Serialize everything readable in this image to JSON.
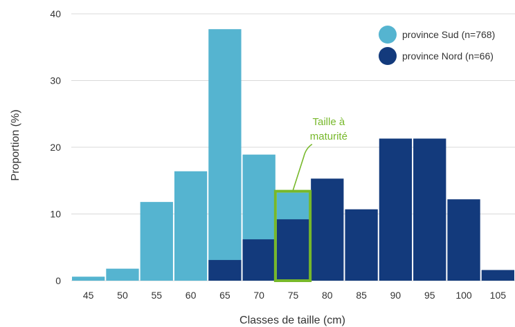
{
  "chart_data": {
    "type": "bar",
    "stacking": "overlaid",
    "xlabel": "Classes de taille (cm)",
    "ylabel": "Proportion (%)",
    "ylim": [
      0,
      40
    ],
    "yticks": [
      0,
      10,
      20,
      30,
      40
    ],
    "grid": true,
    "legend_position": "top-right",
    "categories": [
      "45",
      "50",
      "55",
      "60",
      "65",
      "70",
      "75",
      "80",
      "85",
      "90",
      "95",
      "100",
      "105"
    ],
    "series": [
      {
        "name": "province Sud (n=768)",
        "color": "#55b4d0",
        "values": [
          0.6,
          1.8,
          11.8,
          16.4,
          37.7,
          18.9,
          13.2,
          0,
          0,
          0,
          0,
          0,
          0
        ]
      },
      {
        "name": "province Nord (n=66)",
        "color": "#133a7c",
        "values": [
          0,
          0,
          0,
          0,
          3.1,
          6.2,
          9.2,
          15.3,
          10.7,
          21.3,
          21.3,
          12.2,
          1.6
        ]
      }
    ],
    "annotation": {
      "lines": [
        "Taille à",
        "maturité"
      ],
      "category": "75",
      "color": "#77b82a"
    }
  }
}
